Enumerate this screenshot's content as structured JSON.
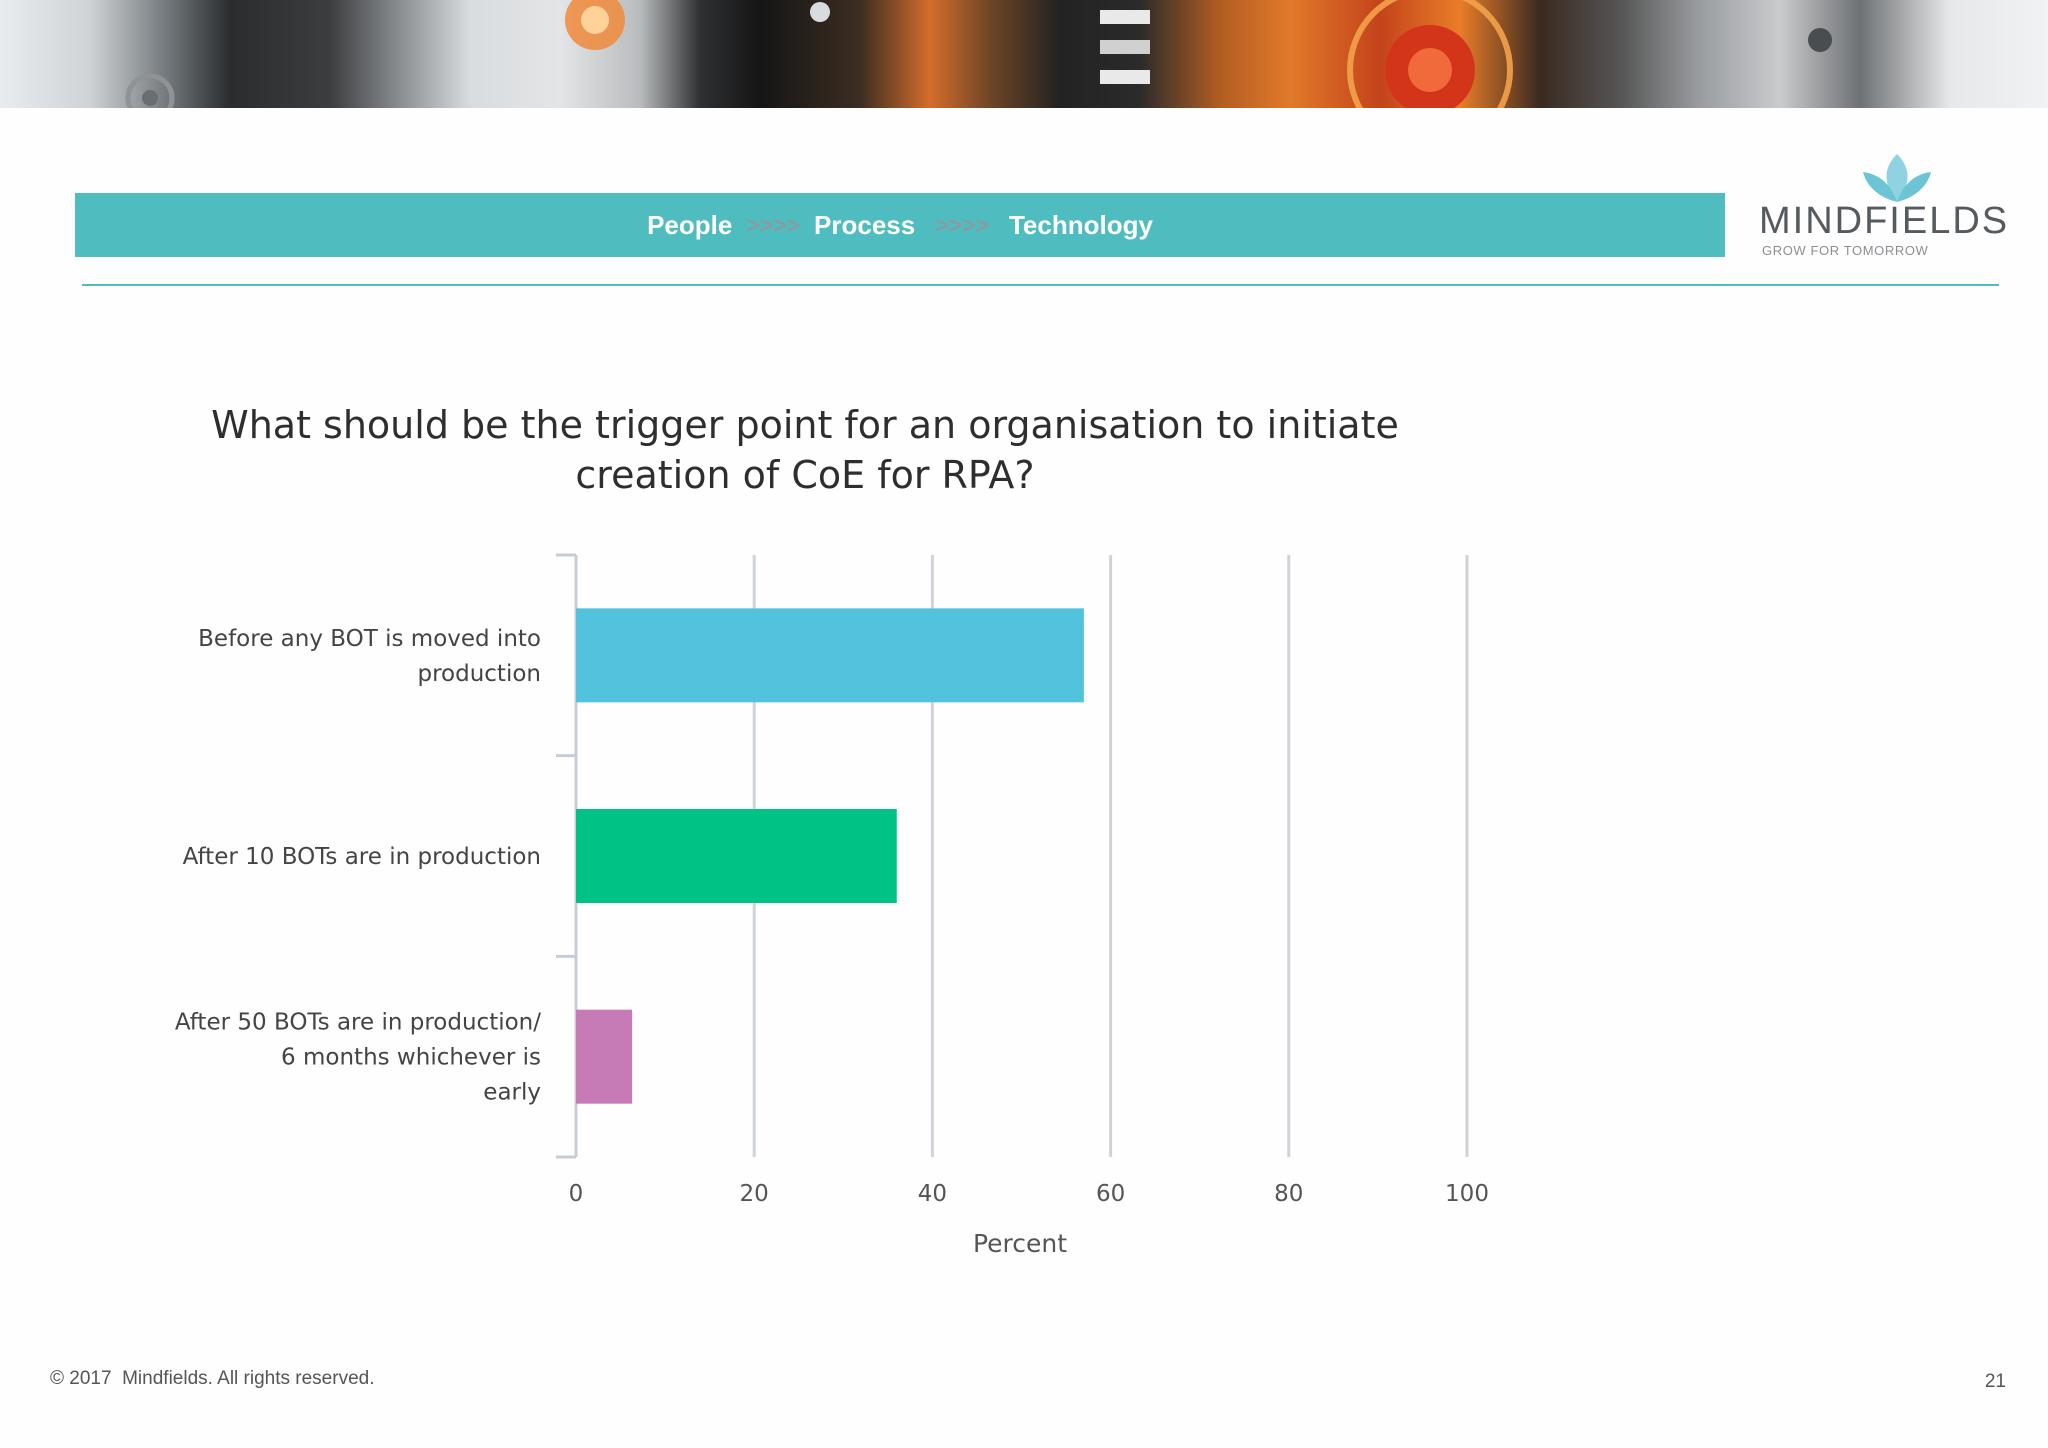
{
  "header": {
    "band": {
      "people": "People",
      "arrows1": ">>>>",
      "process": "Process",
      "arrows2": ">>>>",
      "technology": "Technology",
      "band_color": "#4fbcbf"
    },
    "logo": {
      "word": "MINDFIELDS",
      "tagline": "GROW FOR TOMORROW",
      "icon": "lotus-icon",
      "color": "#6cc4d4"
    }
  },
  "chart_data": {
    "type": "bar",
    "orientation": "horizontal",
    "title": "What should be the trigger point for an organisation to initiate creation of CoE for RPA?",
    "categories": [
      "Before any BOT is moved into production",
      "After 10 BOTs are in production",
      "After 50 BOTs are in production/ 6 months whichever is early"
    ],
    "category_label_lines": [
      [
        "Before any BOT is moved into",
        "production"
      ],
      [
        "After 10 BOTs are in production"
      ],
      [
        "After 50 BOTs are in production/",
        "6 months whichever is",
        "early"
      ]
    ],
    "values": [
      57,
      36,
      6.3
    ],
    "colors": [
      "#52c3dd",
      "#00c285",
      "#c67bb6"
    ],
    "xlabel": "Percent",
    "ylabel": "",
    "xlim": [
      0,
      100
    ],
    "xticks": [
      0,
      20,
      40,
      60,
      80,
      100
    ],
    "grid": true
  },
  "footer": {
    "copyright": "© 2017  Mindfields. All rights reserved.",
    "page_number": "21"
  }
}
